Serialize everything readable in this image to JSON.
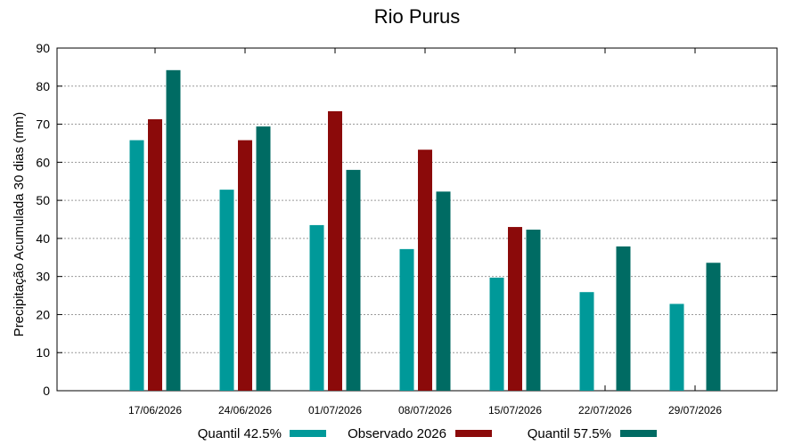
{
  "chart_data": {
    "type": "bar",
    "title": "Rio Purus",
    "xlabel": "",
    "ylabel": "Precipitação Acumulada 30 dias (mm)",
    "ylim": [
      0,
      90
    ],
    "yticks": [
      0,
      10,
      20,
      30,
      40,
      50,
      60,
      70,
      80,
      90
    ],
    "grid": true,
    "legend_position": "bottom",
    "categories": [
      "17/06/2026",
      "24/06/2026",
      "01/07/2026",
      "08/07/2026",
      "15/07/2026",
      "22/07/2026",
      "29/07/2026"
    ],
    "series": [
      {
        "name": "Quantil 42.5%",
        "color": "#009999",
        "values": [
          65.8,
          52.8,
          43.5,
          37.2,
          29.7,
          25.9,
          22.8
        ]
      },
      {
        "name": "Observado 2026",
        "color": "#8b0a0a",
        "values": [
          71.3,
          65.8,
          73.4,
          63.3,
          43.0,
          null,
          null
        ]
      },
      {
        "name": "Quantil 57.5%",
        "color": "#006b63",
        "values": [
          84.2,
          69.4,
          58.0,
          52.3,
          42.3,
          37.9,
          33.6
        ]
      }
    ]
  }
}
